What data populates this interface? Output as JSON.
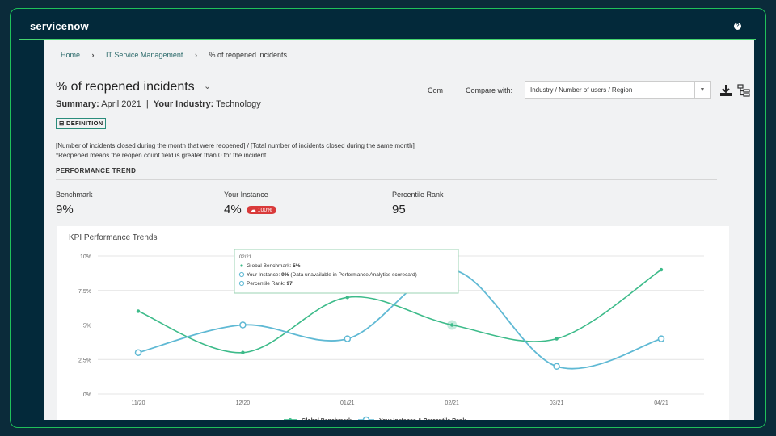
{
  "app": {
    "logo": "servicenow",
    "help_icon": "help-icon"
  },
  "breadcrumb": {
    "home": "Home",
    "section": "IT Service Management",
    "current": "% of reopened incidents",
    "separator": "›"
  },
  "page": {
    "title": "% of reopened incidents",
    "summary_label": "Summary:",
    "summary_value": "April 2021",
    "industry_label": "Your Industry:",
    "industry_value": "Technology",
    "definition_button": "DEFINITION",
    "definition_line1": "[Number of incidents closed during the month that were reopened] / [Total number of incidents closed during the same month]",
    "definition_line2": "*Reopened means the reopen count field is greater than 0 for the incident",
    "section_heading": "PERFORMANCE TREND"
  },
  "compare": {
    "cut_label": "Com",
    "label": "Compare with:",
    "selected": "Industry / Number of users / Region"
  },
  "metrics": [
    {
      "label": "Benchmark",
      "value": "9%"
    },
    {
      "label": "Your Instance",
      "value": "4%",
      "badge": "100%"
    },
    {
      "label": "Percentile Rank",
      "value": "95"
    }
  ],
  "tooltip": {
    "date": "02/21",
    "line1_label": "Global Benchmark:",
    "line1_value": "5%",
    "line2_label": "Your Instance:",
    "line2_value": "9%",
    "line2_note": "(Data unavailable in Performance Analytics scorecard)",
    "line3_label": "Percentile Rank:",
    "line3_value": "97"
  },
  "colors": {
    "benchmark": "#3dbb8a",
    "instance": "#5fb9d4",
    "badge": "#d93a3a",
    "accent": "#20c05a"
  },
  "chart_data": {
    "type": "line",
    "title": "KPI Performance Trends",
    "categories": [
      "11/20",
      "12/20",
      "01/21",
      "02/21",
      "03/21",
      "04/21"
    ],
    "y_ticks": [
      "0%",
      "2.5%",
      "5%",
      "7.5%",
      "10%"
    ],
    "ylim": [
      0,
      10
    ],
    "grid": true,
    "legend_position": "bottom",
    "series": [
      {
        "name": "Global Benchmark",
        "values": [
          6,
          3,
          7,
          5,
          4,
          9
        ]
      },
      {
        "name": "Your Instance & Percentile Rank",
        "values": [
          3,
          5,
          4,
          9,
          2,
          4
        ]
      }
    ]
  }
}
